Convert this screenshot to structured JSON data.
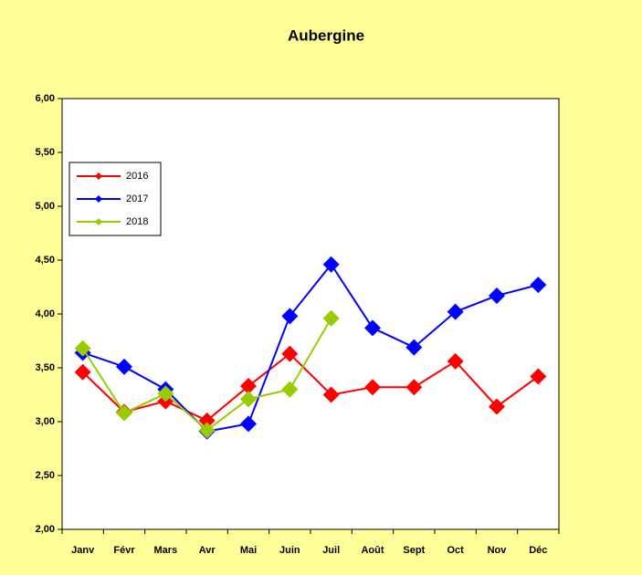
{
  "chart_data": {
    "type": "line",
    "title": "Aubergine",
    "categories": [
      "Janv",
      "Févr",
      "Mars",
      "Avr",
      "Mai",
      "Juin",
      "Juil",
      "Août",
      "Sept",
      "Oct",
      "Nov",
      "Déc"
    ],
    "series": [
      {
        "name": "2016",
        "color": "#ff0000",
        "values": [
          3.46,
          3.09,
          3.19,
          3.01,
          3.33,
          3.63,
          3.25,
          3.32,
          3.32,
          3.56,
          3.14,
          3.42
        ]
      },
      {
        "name": "2017",
        "color": "#0000ff",
        "values": [
          3.64,
          3.51,
          3.3,
          2.91,
          2.98,
          3.98,
          4.46,
          3.87,
          3.69,
          4.02,
          4.17,
          4.27
        ]
      },
      {
        "name": "2018",
        "color": "#99cc00",
        "values": [
          3.68,
          3.08,
          3.26,
          2.92,
          3.21,
          3.3,
          3.96,
          null,
          null,
          null,
          null,
          null
        ]
      }
    ],
    "ylim": [
      2,
      6
    ],
    "yticks": [
      {
        "value": 2,
        "label": "2,00"
      },
      {
        "value": 2.5,
        "label": "2,50"
      },
      {
        "value": 3,
        "label": "3,00"
      },
      {
        "value": 3.5,
        "label": "3,50"
      },
      {
        "value": 4,
        "label": "4,00"
      },
      {
        "value": 4.5,
        "label": "4,50"
      },
      {
        "value": 5,
        "label": "5,00"
      },
      {
        "value": 5.5,
        "label": "5,50"
      },
      {
        "value": 6,
        "label": "6,00"
      }
    ],
    "legend": "upper left"
  }
}
